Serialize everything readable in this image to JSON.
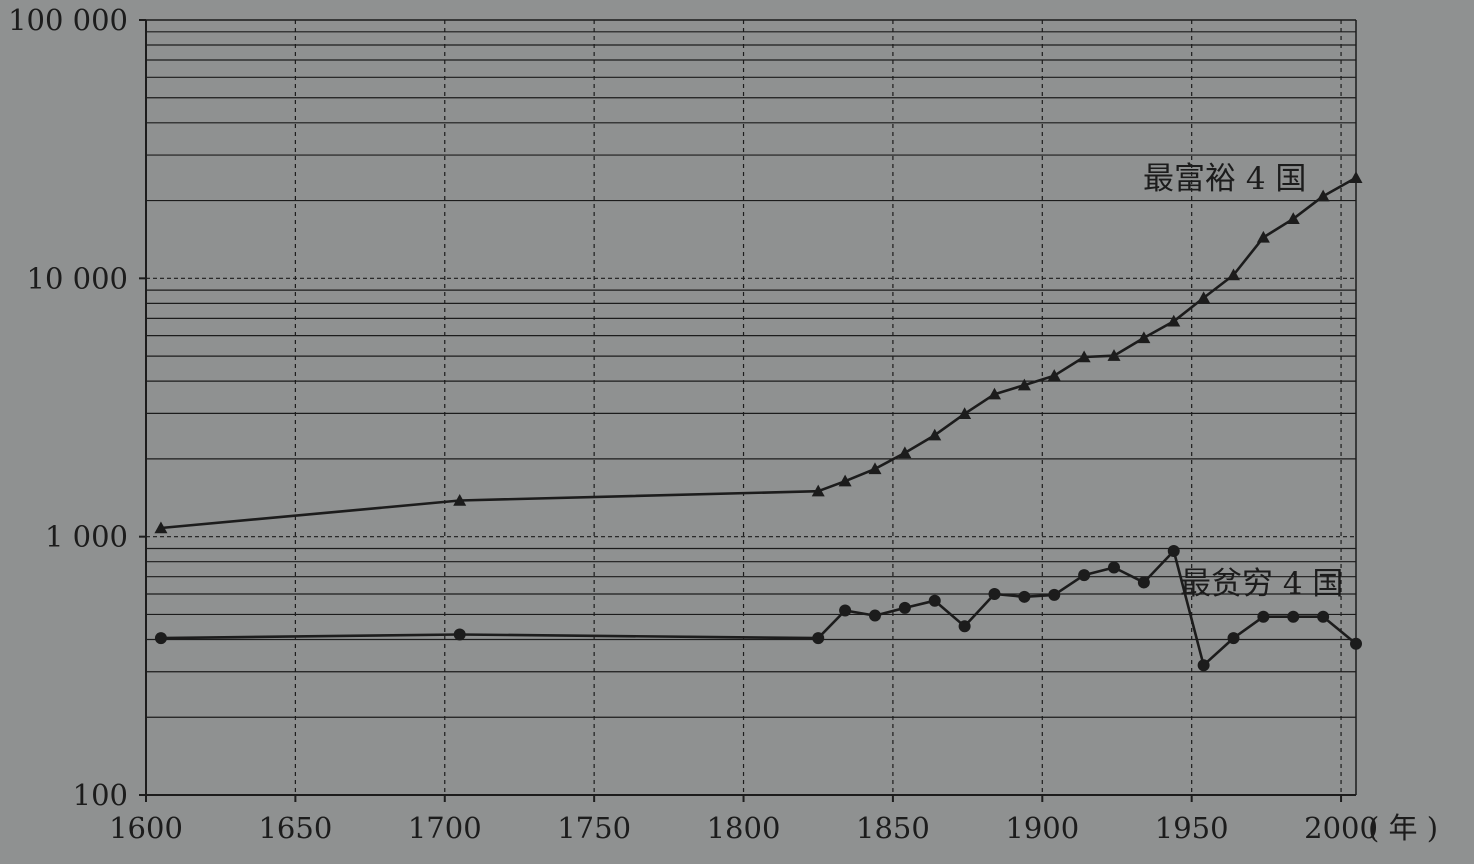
{
  "chart_data": {
    "type": "line",
    "title": "",
    "xlabel": "",
    "x_unit_label": "( 年 )",
    "ylabel": "",
    "y_scale": "log",
    "ylim": [
      100,
      100000
    ],
    "xlim": [
      1600,
      2005
    ],
    "x_ticks": [
      1600,
      1650,
      1700,
      1750,
      1800,
      1850,
      1900,
      1950,
      2000
    ],
    "x_tick_labels": [
      "1600",
      "1650",
      "1700",
      "1750",
      "1800",
      "1850",
      "1900",
      "1950",
      "2000"
    ],
    "y_ticks": [
      100,
      1000,
      10000,
      100000
    ],
    "y_tick_labels": [
      "100",
      "1 000",
      "10 000",
      "100 000"
    ],
    "grid": true,
    "legend": "none",
    "colors": {
      "background": "#8f9191",
      "line": "#1c1c1c",
      "grid": "#1c1c1c"
    },
    "series": [
      {
        "name": "最富裕 4 国",
        "marker": "triangle",
        "x": [
          1605,
          1705,
          1825,
          1834,
          1844,
          1854,
          1864,
          1874,
          1884,
          1894,
          1904,
          1914,
          1924,
          1934,
          1944,
          1954,
          1964,
          1974,
          1984,
          1994,
          2005
        ],
        "y": [
          1080,
          1380,
          1500,
          1640,
          1830,
          2110,
          2470,
          2990,
          3560,
          3860,
          4200,
          4960,
          5020,
          5880,
          6820,
          8400,
          10300,
          14400,
          17000,
          20800,
          24500
        ]
      },
      {
        "name": "最贫穷 4 国",
        "marker": "circle",
        "x": [
          1605,
          1705,
          1825,
          1834,
          1844,
          1854,
          1864,
          1874,
          1884,
          1894,
          1904,
          1914,
          1924,
          1934,
          1944,
          1954,
          1964,
          1974,
          1984,
          1994,
          2005
        ],
        "y": [
          405,
          418,
          405,
          518,
          495,
          530,
          565,
          450,
          600,
          585,
          595,
          710,
          760,
          665,
          880,
          318,
          405,
          490,
          490,
          490,
          385
        ]
      }
    ]
  }
}
